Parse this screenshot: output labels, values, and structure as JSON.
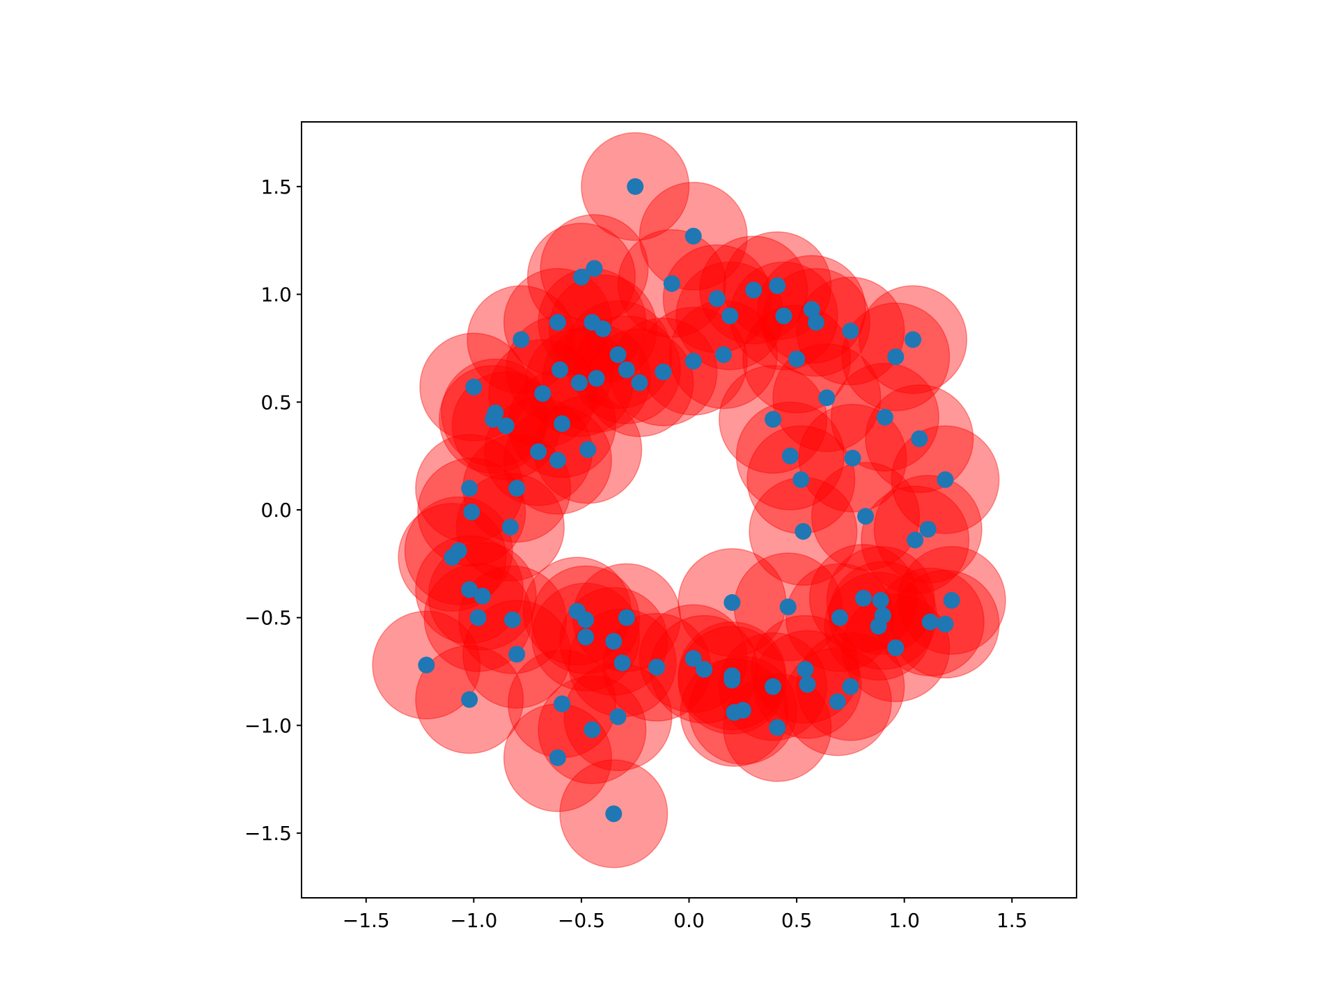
{
  "chart_data": {
    "type": "scatter",
    "color": "#1f77b4",
    "circle_color": "#ff0000",
    "circle_radius": 0.25,
    "xlim": [
      -1.8,
      1.8
    ],
    "ylim": [
      -1.8,
      1.8
    ],
    "xticks": [
      {
        "value": -1.5,
        "label": "−1.5"
      },
      {
        "value": -1.0,
        "label": "−1.0"
      },
      {
        "value": -0.5,
        "label": "−0.5"
      },
      {
        "value": 0,
        "label": "0.0"
      },
      0.5,
      {
        "value": 1,
        "label": "1.0"
      },
      1.5
    ],
    "yticks": [
      {
        "value": -1.5,
        "label": "−1.5"
      },
      {
        "value": -1.0,
        "label": "−1.0"
      },
      {
        "value": -0.5,
        "label": "−0.5"
      },
      {
        "value": 0,
        "label": "0.0"
      },
      0.5,
      {
        "value": 1,
        "label": "1.0"
      },
      1.5
    ],
    "x": [
      -0.25,
      0.02,
      -0.44,
      -0.5,
      -0.08,
      0.3,
      0.41,
      0.13,
      0.57,
      0.19,
      0.44,
      0.59,
      0.75,
      1.04,
      -0.61,
      -0.45,
      -0.4,
      -0.78,
      -0.33,
      0.16,
      0.02,
      0.5,
      0.96,
      -0.29,
      -0.6,
      -0.12,
      -0.43,
      -0.51,
      -0.23,
      -1.0,
      0.64,
      -0.68,
      -0.9,
      -0.91,
      -0.85,
      -0.59,
      0.39,
      0.91,
      1.07,
      -0.47,
      -0.7,
      -0.61,
      0.47,
      0.76,
      0.52,
      1.19,
      -1.02,
      -0.8,
      -1.01,
      0.82,
      -0.83,
      0.53,
      1.11,
      1.05,
      -1.07,
      -1.1,
      -1.02,
      -0.96,
      0.2,
      0.81,
      0.89,
      1.22,
      0.46,
      -0.52,
      -0.48,
      -0.98,
      -0.82,
      -0.29,
      0.7,
      0.9,
      0.88,
      1.12,
      1.19,
      -0.48,
      -0.35,
      0.96,
      -0.8,
      0.02,
      -0.31,
      0.07,
      -0.15,
      0.54,
      -1.22,
      0.2,
      0.2,
      0.55,
      0.39,
      0.75,
      -1.02,
      0.69,
      -0.59,
      0.21,
      0.25,
      -0.33,
      -0.45,
      0.41,
      -0.61,
      -0.35
    ],
    "y": [
      1.5,
      1.27,
      1.12,
      1.08,
      1.05,
      1.02,
      1.04,
      0.98,
      0.93,
      0.9,
      0.9,
      0.87,
      0.83,
      0.79,
      0.87,
      0.87,
      0.84,
      0.79,
      0.72,
      0.72,
      0.69,
      0.7,
      0.71,
      0.65,
      0.65,
      0.64,
      0.61,
      0.59,
      0.59,
      0.57,
      0.52,
      0.54,
      0.45,
      0.42,
      0.39,
      0.4,
      0.42,
      0.43,
      0.33,
      0.28,
      0.27,
      0.23,
      0.25,
      0.24,
      0.14,
      0.14,
      0.1,
      0.1,
      -0.01,
      -0.03,
      -0.08,
      -0.1,
      -0.09,
      -0.14,
      -0.19,
      -0.22,
      -0.37,
      -0.4,
      -0.43,
      -0.41,
      -0.42,
      -0.42,
      -0.45,
      -0.47,
      -0.51,
      -0.5,
      -0.51,
      -0.5,
      -0.5,
      -0.49,
      -0.54,
      -0.52,
      -0.53,
      -0.59,
      -0.61,
      -0.64,
      -0.67,
      -0.69,
      -0.71,
      -0.74,
      -0.73,
      -0.74,
      -0.72,
      -0.77,
      -0.79,
      -0.81,
      -0.82,
      -0.82,
      -0.88,
      -0.89,
      -0.9,
      -0.94,
      -0.93,
      -0.96,
      -1.02,
      -1.01,
      -1.15,
      -1.41
    ]
  }
}
